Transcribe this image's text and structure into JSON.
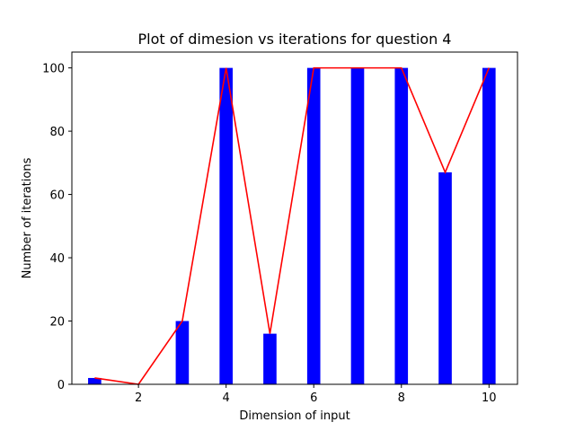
{
  "chart_data": {
    "type": "bar",
    "title": "Plot of dimesion vs iterations for question 4",
    "xlabel": "Dimension of input",
    "ylabel": "Number of iterations",
    "x": [
      1,
      2,
      3,
      4,
      5,
      6,
      7,
      8,
      9,
      10
    ],
    "values": [
      2,
      0,
      20,
      100,
      16,
      100,
      100,
      100,
      67,
      100
    ],
    "line_values": [
      2,
      0,
      20,
      100,
      16,
      100,
      100,
      100,
      67,
      100
    ],
    "xlim": [
      0.48,
      10.65
    ],
    "ylim": [
      0,
      105
    ],
    "xticks": [
      2,
      4,
      6,
      8,
      10
    ],
    "yticks": [
      0,
      20,
      40,
      60,
      80,
      100
    ],
    "grid": false,
    "legend": "none",
    "bar_color": "#0000ff",
    "line_color": "#ff0000"
  }
}
